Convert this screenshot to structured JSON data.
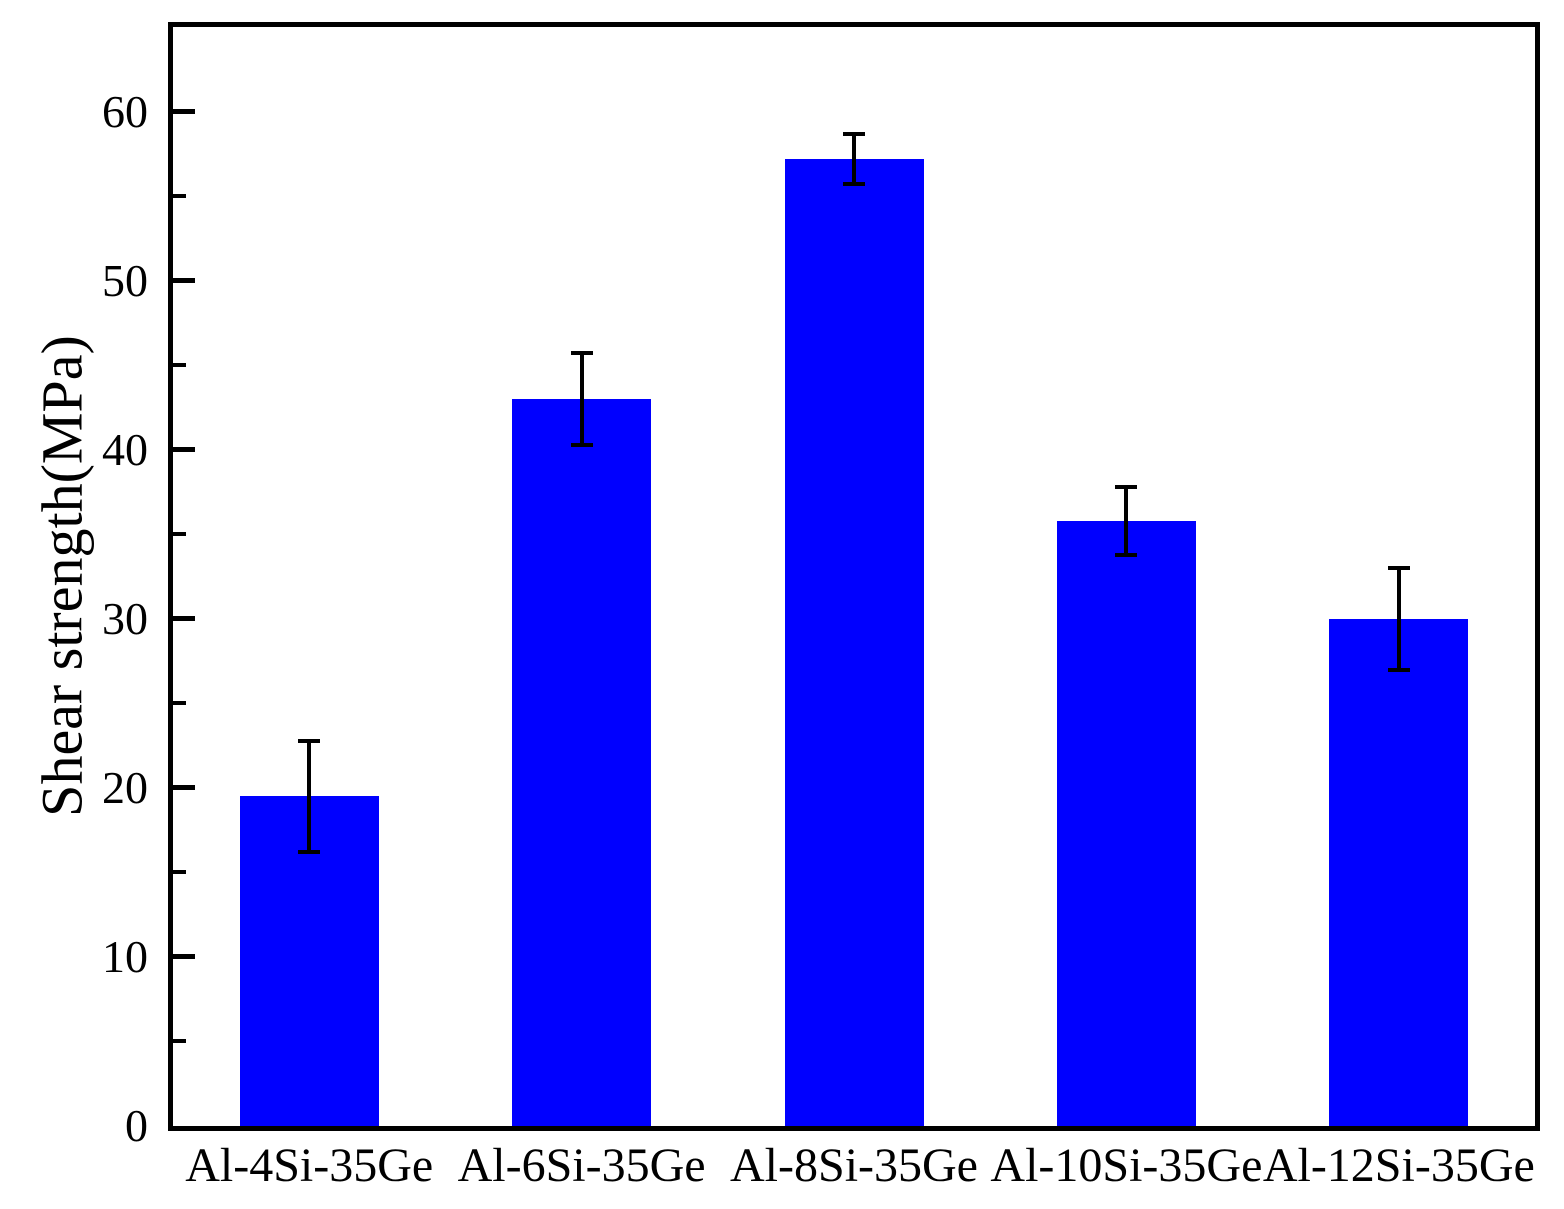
{
  "chart_data": {
    "type": "bar",
    "title": "",
    "xlabel": "",
    "ylabel": "Shear strength(MPa)",
    "categories": [
      "Al-4Si-35Ge",
      "Al-6Si-35Ge",
      "Al-8Si-35Ge",
      "Al-10Si-35Ge",
      "Al-12Si-35Ge"
    ],
    "values": [
      19.5,
      43.0,
      57.2,
      35.8,
      30.0
    ],
    "errors": [
      3.3,
      2.7,
      1.5,
      2.0,
      3.0
    ],
    "ylim": [
      0,
      65
    ],
    "yticks_major": [
      0,
      10,
      20,
      30,
      40,
      50,
      60
    ],
    "yticks_minor": [
      5,
      15,
      25,
      35,
      45,
      55
    ],
    "grid": false,
    "legend": "none",
    "bar_color": "#0000ff",
    "error_bar_color": "#000000",
    "axis_color": "#000000",
    "background_color": "#ffffff"
  }
}
